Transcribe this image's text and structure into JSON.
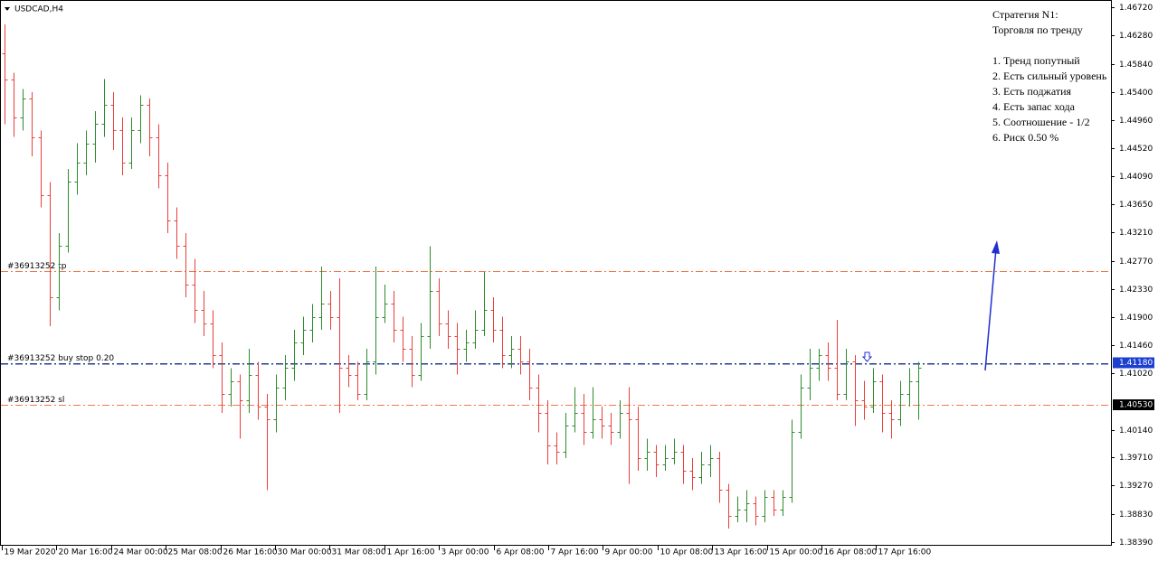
{
  "chart_data": {
    "type": "ohlc",
    "title": "USDCAD,H4",
    "up_color": "#2e8b2e",
    "down_color": "#e8403c",
    "ylim": [
      1.3839,
      1.4672
    ],
    "yticks": [
      {
        "value": 1.4672,
        "label": "1.46720"
      },
      {
        "value": 1.4628,
        "label": "1.46280"
      },
      {
        "value": 1.4584,
        "label": "1.45840"
      },
      {
        "value": 1.454,
        "label": "1.45400"
      },
      {
        "value": 1.4496,
        "label": "1.44960"
      },
      {
        "value": 1.4452,
        "label": "1.44520"
      },
      {
        "value": 1.4409,
        "label": "1.44090"
      },
      {
        "value": 1.4365,
        "label": "1.43650"
      },
      {
        "value": 1.4321,
        "label": "1.43210"
      },
      {
        "value": 1.4277,
        "label": "1.42770"
      },
      {
        "value": 1.4233,
        "label": "1.42330"
      },
      {
        "value": 1.419,
        "label": "1.41900"
      },
      {
        "value": 1.4146,
        "label": "1.41460"
      },
      {
        "value": 1.4102,
        "label": "1.41020"
      },
      {
        "value": 1.4014,
        "label": "1.40140"
      },
      {
        "value": 1.3971,
        "label": "1.39710"
      },
      {
        "value": 1.3927,
        "label": "1.39270"
      },
      {
        "value": 1.3883,
        "label": "1.38830"
      },
      {
        "value": 1.3839,
        "label": "1.38390"
      }
    ],
    "xtick_labels": [
      "19 Mar 2020",
      "20 Mar 16:00",
      "24 Mar 00:00",
      "25 Mar 08:00",
      "26 Mar 16:00",
      "30 Mar 00:00",
      "31 Mar 08:00",
      "1 Apr 16:00",
      "3 Apr 00:00",
      "6 Apr 08:00",
      "7 Apr 16:00",
      "9 Apr 00:00",
      "10 Apr 08:00",
      "13 Apr 16:00",
      "15 Apr 00:00",
      "16 Apr 08:00",
      "17 Apr 16:00"
    ],
    "levels": [
      {
        "label": "#36913252 tp",
        "value": 1.4261,
        "color": "#f07848"
      },
      {
        "label": "#36913252 buy stop 0.20",
        "value": 1.4118,
        "color": "#1f3f8f"
      },
      {
        "label": "#36913252 sl",
        "value": 1.4053,
        "color": "#f07848"
      }
    ],
    "price_tags": [
      {
        "value": 1.4118,
        "label": "1.41180",
        "color": "#1c3fd0"
      },
      {
        "value": 1.4053,
        "label": "1.40530",
        "color": "#000000"
      }
    ],
    "annotation": [
      "Стратегия N1:",
      "Торговля по тренду",
      "1. Тренд попутный",
      "2. Есть сильный уровень",
      "3. Есть поджатия",
      "4. Есть запас хода",
      "5. Соотношение - 1/2",
      "6. Риск 0.50 %"
    ],
    "bars": [
      [
        1.46,
        1.4645,
        1.449,
        1.456
      ],
      [
        1.456,
        1.457,
        1.447,
        1.45
      ],
      [
        1.45,
        1.4545,
        1.448,
        1.453
      ],
      [
        1.453,
        1.454,
        1.444,
        1.447
      ],
      [
        1.447,
        1.448,
        1.436,
        1.438
      ],
      [
        1.438,
        1.44,
        1.4175,
        1.422
      ],
      [
        1.422,
        1.432,
        1.42,
        1.43
      ],
      [
        1.43,
        1.442,
        1.429,
        1.44
      ],
      [
        1.44,
        1.446,
        1.438,
        1.443
      ],
      [
        1.443,
        1.448,
        1.441,
        1.446
      ],
      [
        1.446,
        1.451,
        1.443,
        1.449
      ],
      [
        1.449,
        1.456,
        1.447,
        1.452
      ],
      [
        1.452,
        1.454,
        1.445,
        1.448
      ],
      [
        1.448,
        1.45,
        1.441,
        1.443
      ],
      [
        1.443,
        1.45,
        1.442,
        1.448
      ],
      [
        1.448,
        1.4535,
        1.446,
        1.452
      ],
      [
        1.452,
        1.453,
        1.444,
        1.447
      ],
      [
        1.447,
        1.449,
        1.439,
        1.441
      ],
      [
        1.441,
        1.443,
        1.432,
        1.434
      ],
      [
        1.434,
        1.436,
        1.428,
        1.43
      ],
      [
        1.43,
        1.432,
        1.422,
        1.424
      ],
      [
        1.424,
        1.428,
        1.418,
        1.42
      ],
      [
        1.42,
        1.423,
        1.416,
        1.418
      ],
      [
        1.418,
        1.42,
        1.411,
        1.413
      ],
      [
        1.413,
        1.415,
        1.404,
        1.407
      ],
      [
        1.407,
        1.411,
        1.405,
        1.409
      ],
      [
        1.409,
        1.41,
        1.4,
        1.406
      ],
      [
        1.406,
        1.414,
        1.404,
        1.41
      ],
      [
        1.41,
        1.412,
        1.403,
        1.405
      ],
      [
        1.405,
        1.407,
        1.392,
        1.403
      ],
      [
        1.403,
        1.41,
        1.401,
        1.408
      ],
      [
        1.408,
        1.413,
        1.406,
        1.411
      ],
      [
        1.411,
        1.417,
        1.409,
        1.415
      ],
      [
        1.415,
        1.419,
        1.413,
        1.417
      ],
      [
        1.417,
        1.421,
        1.415,
        1.419
      ],
      [
        1.419,
        1.4268,
        1.417,
        1.421
      ],
      [
        1.421,
        1.423,
        1.417,
        1.419
      ],
      [
        1.419,
        1.425,
        1.404,
        1.411
      ],
      [
        1.411,
        1.413,
        1.408,
        1.41
      ],
      [
        1.41,
        1.412,
        1.406,
        1.407
      ],
      [
        1.407,
        1.414,
        1.406,
        1.412
      ],
      [
        1.412,
        1.4268,
        1.41,
        1.419
      ],
      [
        1.419,
        1.424,
        1.418,
        1.421
      ],
      [
        1.421,
        1.423,
        1.415,
        1.417
      ],
      [
        1.417,
        1.419,
        1.412,
        1.414
      ],
      [
        1.414,
        1.416,
        1.408,
        1.41
      ],
      [
        1.41,
        1.418,
        1.409,
        1.416
      ],
      [
        1.416,
        1.43,
        1.414,
        1.423
      ],
      [
        1.423,
        1.425,
        1.416,
        1.418
      ],
      [
        1.418,
        1.42,
        1.414,
        1.416
      ],
      [
        1.416,
        1.418,
        1.41,
        1.414
      ],
      [
        1.414,
        1.417,
        1.412,
        1.415
      ],
      [
        1.415,
        1.42,
        1.414,
        1.417
      ],
      [
        1.417,
        1.426,
        1.416,
        1.42
      ],
      [
        1.42,
        1.422,
        1.415,
        1.417
      ],
      [
        1.417,
        1.419,
        1.411,
        1.413
      ],
      [
        1.413,
        1.416,
        1.411,
        1.414
      ],
      [
        1.414,
        1.416,
        1.41,
        1.412
      ],
      [
        1.412,
        1.414,
        1.406,
        1.408
      ],
      [
        1.408,
        1.41,
        1.401,
        1.404
      ],
      [
        1.404,
        1.406,
        1.396,
        1.399
      ],
      [
        1.399,
        1.401,
        1.396,
        1.398
      ],
      [
        1.398,
        1.404,
        1.397,
        1.402
      ],
      [
        1.402,
        1.408,
        1.401,
        1.404
      ],
      [
        1.404,
        1.407,
        1.399,
        1.401
      ],
      [
        1.401,
        1.408,
        1.4,
        1.403
      ],
      [
        1.403,
        1.405,
        1.4,
        1.402
      ],
      [
        1.402,
        1.404,
        1.399,
        1.401
      ],
      [
        1.401,
        1.406,
        1.4,
        1.404
      ],
      [
        1.404,
        1.408,
        1.393,
        1.403
      ],
      [
        1.403,
        1.405,
        1.395,
        1.397
      ],
      [
        1.397,
        1.4,
        1.395,
        1.398
      ],
      [
        1.398,
        1.399,
        1.394,
        1.396
      ],
      [
        1.396,
        1.399,
        1.395,
        1.397
      ],
      [
        1.397,
        1.4,
        1.396,
        1.398
      ],
      [
        1.398,
        1.399,
        1.393,
        1.395
      ],
      [
        1.395,
        1.397,
        1.392,
        1.394
      ],
      [
        1.394,
        1.398,
        1.393,
        1.396
      ],
      [
        1.396,
        1.399,
        1.394,
        1.397
      ],
      [
        1.397,
        1.398,
        1.39,
        1.392
      ],
      [
        1.392,
        1.393,
        1.386,
        1.388
      ],
      [
        1.388,
        1.391,
        1.387,
        1.389
      ],
      [
        1.389,
        1.392,
        1.387,
        1.39
      ],
      [
        1.39,
        1.391,
        1.3865,
        1.388
      ],
      [
        1.388,
        1.392,
        1.387,
        1.391
      ],
      [
        1.391,
        1.392,
        1.388,
        1.389
      ],
      [
        1.389,
        1.392,
        1.388,
        1.391
      ],
      [
        1.391,
        1.403,
        1.39,
        1.401
      ],
      [
        1.401,
        1.41,
        1.4,
        1.408
      ],
      [
        1.408,
        1.414,
        1.406,
        1.411
      ],
      [
        1.411,
        1.414,
        1.409,
        1.413
      ],
      [
        1.413,
        1.415,
        1.409,
        1.411
      ],
      [
        1.411,
        1.4185,
        1.406,
        1.407
      ],
      [
        1.407,
        1.414,
        1.406,
        1.412
      ],
      [
        1.412,
        1.413,
        1.402,
        1.406
      ],
      [
        1.406,
        1.409,
        1.403,
        1.405
      ],
      [
        1.405,
        1.411,
        1.404,
        1.409
      ],
      [
        1.409,
        1.41,
        1.401,
        1.404
      ],
      [
        1.404,
        1.406,
        1.4,
        1.403
      ],
      [
        1.403,
        1.409,
        1.402,
        1.407
      ],
      [
        1.407,
        1.411,
        1.405,
        1.409
      ],
      [
        1.409,
        1.412,
        1.403,
        1.411
      ]
    ]
  }
}
